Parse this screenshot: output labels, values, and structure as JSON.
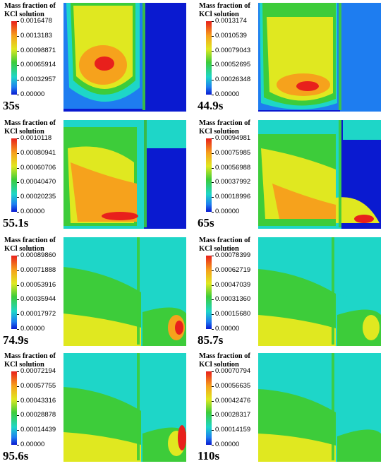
{
  "legend_title": "Mass fraction of\nKCl solution",
  "palette": {
    "red": "#e8201c",
    "orange": "#f6a21c",
    "yellow": "#e0e820",
    "green": "#3dcc3a",
    "cyan": "#1ed6c8",
    "blue": "#1e7df0",
    "darkblue": "#0a1ad0"
  },
  "panels": [
    {
      "time": "35s",
      "max_level": 1.0,
      "ticks": [
        "0.0016478",
        "0.0013183",
        "0.00098871",
        "0.00065914",
        "0.00032957",
        "0.00000"
      ]
    },
    {
      "time": "44.9s",
      "max_level": 1.0,
      "ticks": [
        "0.0013174",
        "0.0010539",
        "0.00079043",
        "0.00052695",
        "0.00026348",
        "0.00000"
      ]
    },
    {
      "time": "55.1s",
      "max_level": 1.0,
      "ticks": [
        "0.0010118",
        "0.00080941",
        "0.00060706",
        "0.00040470",
        "0.00020235",
        "0.00000"
      ]
    },
    {
      "time": "65s",
      "max_level": 1.0,
      "ticks": [
        "0.00094981",
        "0.00075985",
        "0.00056988",
        "0.00037992",
        "0.00018996",
        "0.00000"
      ]
    },
    {
      "time": "74.9s",
      "max_level": 1.0,
      "ticks": [
        "0.00089860",
        "0.00071888",
        "0.00053916",
        "0.00035944",
        "0.00017972",
        "0.00000"
      ]
    },
    {
      "time": "85.7s",
      "max_level": 1.0,
      "ticks": [
        "0.00078399",
        "0.00062719",
        "0.00047039",
        "0.00031360",
        "0.00015680",
        "0.00000"
      ]
    },
    {
      "time": "95.6s",
      "max_level": 1.0,
      "ticks": [
        "0.00072194",
        "0.00057755",
        "0.00043316",
        "0.00028878",
        "0.00014439",
        "0.00000"
      ]
    },
    {
      "time": "110s",
      "max_level": 1.0,
      "ticks": [
        "0.00070794",
        "0.00056635",
        "0.00042476",
        "0.00028317",
        "0.00014159",
        "0.00000"
      ]
    }
  ]
}
